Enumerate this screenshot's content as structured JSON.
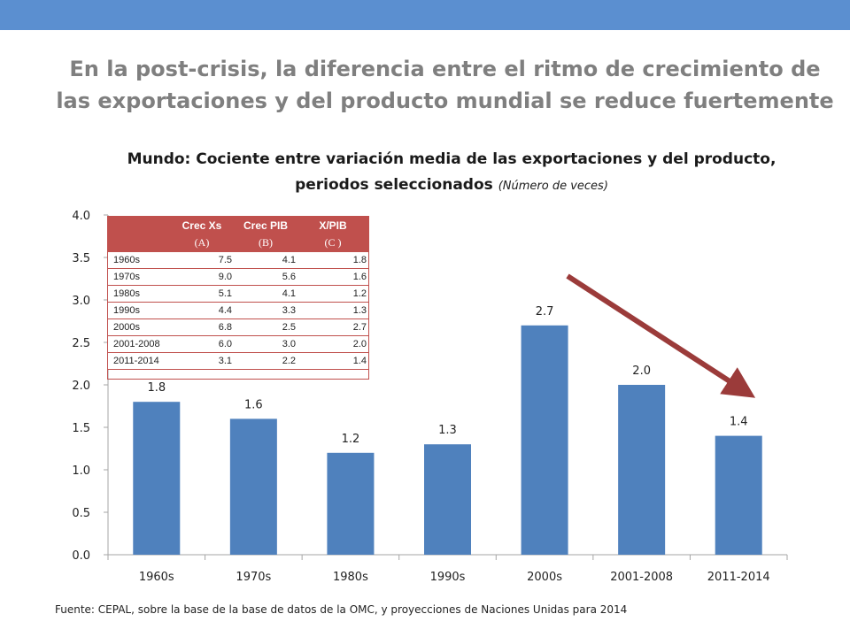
{
  "headline": "En la post-crisis, la diferencia entre el ritmo de crecimiento de las exportaciones y del producto mundial se reduce fuertemente",
  "chart_title": "Mundo: Cociente entre variación media de las exportaciones y del producto, periodos seleccionados",
  "chart_title_sub": "(Número de veces)",
  "source_note": "Fuente: CEPAL, sobre la base de la base de datos de la OMC, y proyecciones de Naciones Unidas para 2014",
  "colors": {
    "top_bar": "#5b8fd0",
    "bar": "#4f81bd",
    "table_header": "#c0504d",
    "arrow": "#9b3b3a",
    "headline": "#7f7f7f"
  },
  "table": {
    "headers": [
      "",
      "Crec Xs",
      "Crec PIB",
      "X/PIB"
    ],
    "subheaders": [
      "",
      "(A)",
      "(B)",
      "(C )"
    ],
    "rows": [
      [
        "1960s",
        "7.5",
        "4.1",
        "1.8"
      ],
      [
        "1970s",
        "9.0",
        "5.6",
        "1.6"
      ],
      [
        "1980s",
        "5.1",
        "4.1",
        "1.2"
      ],
      [
        "1990s",
        "4.4",
        "3.3",
        "1.3"
      ],
      [
        "2000s",
        "6.8",
        "2.5",
        "2.7"
      ],
      [
        "2001-2008",
        "6.0",
        "3.0",
        "2.0"
      ],
      [
        "2011-2014",
        "3.1",
        "2.2",
        "1.4"
      ]
    ]
  },
  "chart_data": {
    "type": "bar",
    "categories": [
      "1960s",
      "1970s",
      "1980s",
      "1990s",
      "2000s",
      "2001-2008",
      "2011-2014"
    ],
    "values": [
      1.8,
      1.6,
      1.2,
      1.3,
      2.7,
      2.0,
      1.4
    ],
    "data_labels": [
      "1.8",
      "1.6",
      "1.2",
      "1.3",
      "2.7",
      "2.0",
      "1.4"
    ],
    "y_ticks": [
      "0.0",
      "0.5",
      "1.0",
      "1.5",
      "2.0",
      "2.5",
      "3.0",
      "3.5",
      "4.0"
    ],
    "ylim": [
      0,
      4.0
    ],
    "grid": false,
    "annotation": "downward arrow from the 2000s bar toward the 2011-2014 bar"
  }
}
